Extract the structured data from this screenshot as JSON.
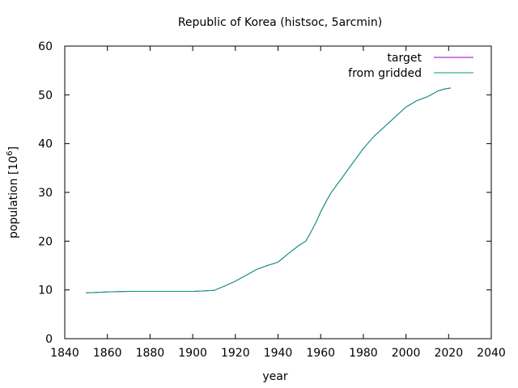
{
  "chart_data": {
    "type": "line",
    "title": "Republic of Korea (histsoc, 5arcmin)",
    "xlabel": "year",
    "ylabel_base": "population [10",
    "ylabel_exp": "6",
    "ylabel_close": "]",
    "xlim": [
      1840,
      2040
    ],
    "ylim": [
      0,
      60
    ],
    "xticks": [
      1840,
      1860,
      1880,
      1900,
      1920,
      1940,
      1960,
      1980,
      2000,
      2020,
      2040
    ],
    "yticks": [
      0,
      10,
      20,
      30,
      40,
      50,
      60
    ],
    "grid": false,
    "legend_position": "top-right",
    "series": [
      {
        "name": "target",
        "color": "#9400d3",
        "x": [
          1850,
          1855,
          1860,
          1870,
          1880,
          1890,
          1900,
          1905,
          1910,
          1915,
          1920,
          1925,
          1930,
          1935,
          1940,
          1945,
          1950,
          1953,
          1955,
          1958,
          1960,
          1963,
          1965,
          1970,
          1975,
          1980,
          1985,
          1990,
          1995,
          2000,
          2005,
          2010,
          2013,
          2015,
          2018,
          2021
        ],
        "y": [
          9.4,
          9.5,
          9.6,
          9.7,
          9.7,
          9.7,
          9.7,
          9.8,
          9.9,
          10.8,
          11.8,
          13.0,
          14.2,
          15.0,
          15.7,
          17.5,
          19.2,
          20.0,
          21.5,
          24.0,
          26.0,
          28.5,
          30.0,
          33.0,
          36.0,
          39.0,
          41.5,
          43.5,
          45.5,
          47.5,
          48.8,
          49.6,
          50.3,
          50.8,
          51.2,
          51.4
        ]
      },
      {
        "name": "from gridded",
        "color": "#009e73",
        "x": [
          1850,
          1855,
          1860,
          1870,
          1880,
          1890,
          1900,
          1905,
          1910,
          1915,
          1920,
          1925,
          1930,
          1935,
          1940,
          1945,
          1950,
          1953,
          1955,
          1958,
          1960,
          1963,
          1965,
          1970,
          1975,
          1980,
          1985,
          1990,
          1995,
          2000,
          2005,
          2010,
          2013,
          2015,
          2018,
          2021
        ],
        "y": [
          9.4,
          9.5,
          9.6,
          9.7,
          9.7,
          9.7,
          9.7,
          9.8,
          9.9,
          10.8,
          11.8,
          13.0,
          14.2,
          15.0,
          15.7,
          17.5,
          19.2,
          20.0,
          21.5,
          24.0,
          26.0,
          28.5,
          30.0,
          33.0,
          36.0,
          39.0,
          41.5,
          43.5,
          45.5,
          47.5,
          48.8,
          49.6,
          50.3,
          50.8,
          51.2,
          51.4
        ]
      }
    ]
  }
}
